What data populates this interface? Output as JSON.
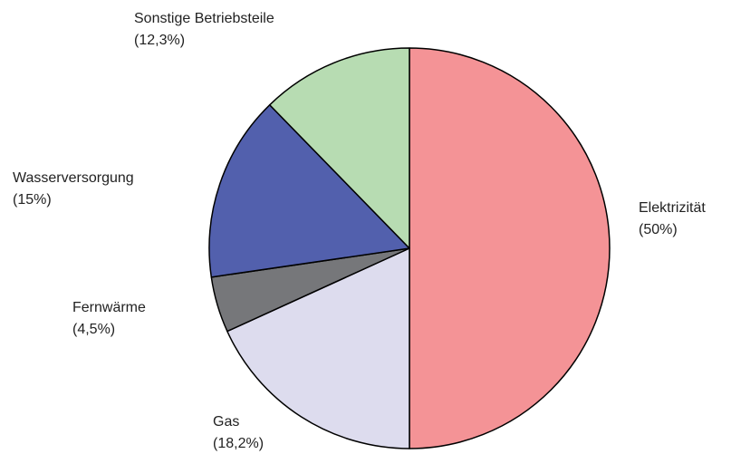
{
  "chart_data": {
    "type": "pie",
    "categories": [
      "Elektrizität",
      "Gas",
      "Fernwärme",
      "Wasserversorgung",
      "Sonstige Betriebsteile"
    ],
    "values": [
      50,
      18.2,
      4.5,
      15,
      12.3
    ],
    "value_labels": [
      "(50%)",
      "(18,2%)",
      "(4,5%)",
      "(15%)",
      "(12,3%)"
    ],
    "colors": [
      "#f49396",
      "#dddcee",
      "#76777a",
      "#5260ad",
      "#b7dcb2"
    ]
  }
}
